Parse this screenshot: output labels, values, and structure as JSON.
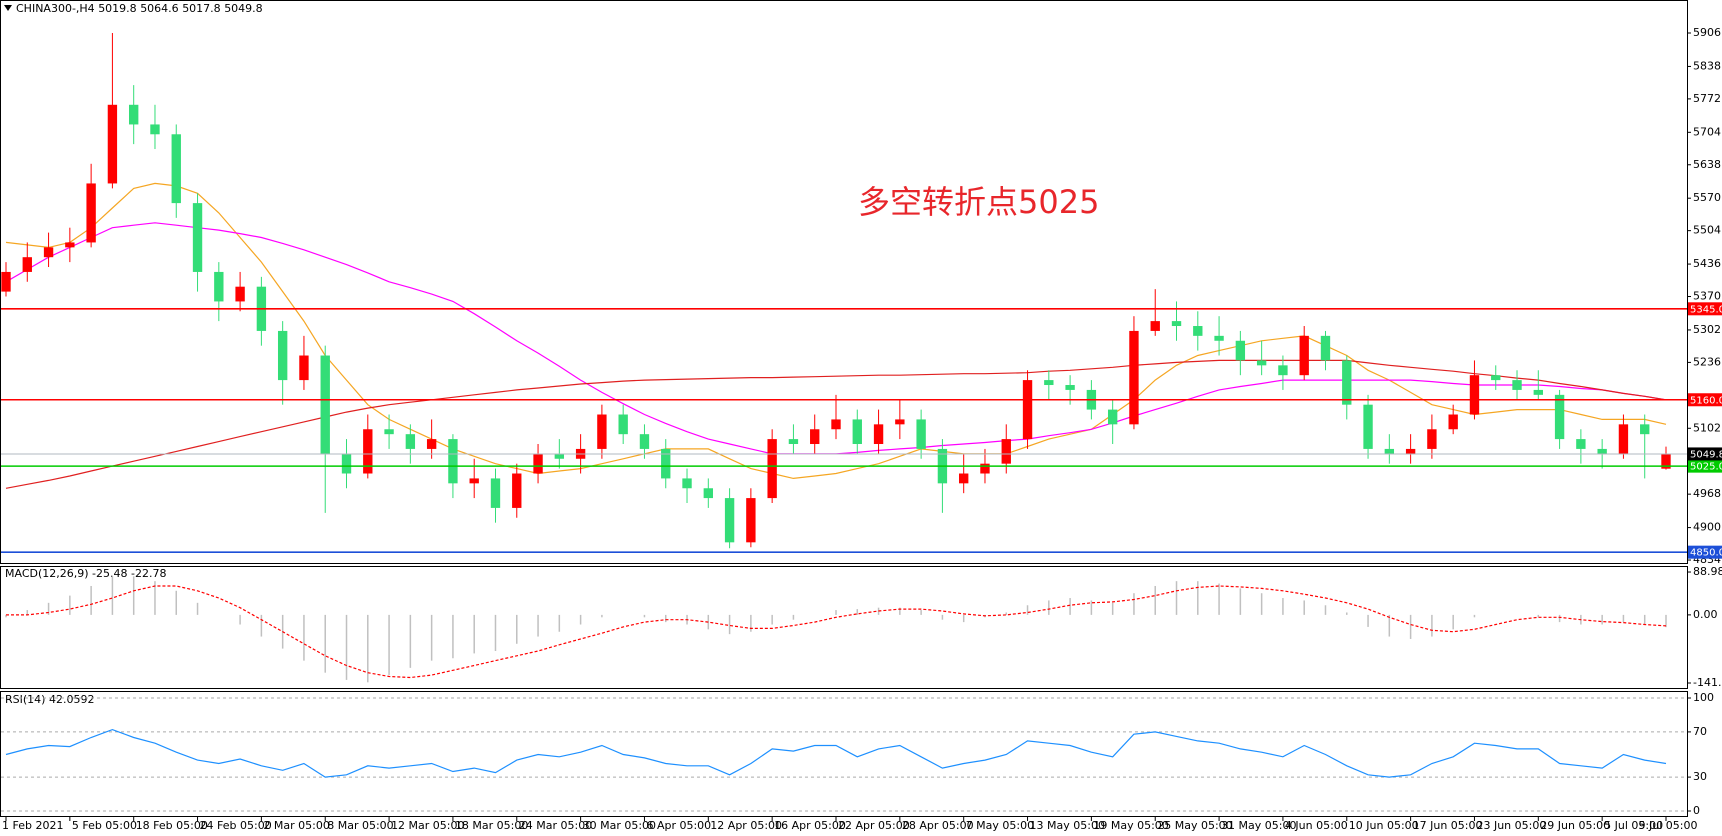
{
  "chart_data": [
    {
      "type": "candlestick",
      "title": "CHINA300-,H4",
      "annotation": "多空转折点5025",
      "annotation_color": "#e8262b",
      "up_color": "#ff0000",
      "down_color": "#33dd77",
      "last_price_color": "#b0b8c0",
      "grid": false,
      "ylim": [
        4830,
        5965
      ],
      "yticks": [
        {
          "value": 5906,
          "label": "5906.0"
        },
        {
          "value": 5838,
          "label": "5838.0"
        },
        {
          "value": 5772,
          "label": "5772.0"
        },
        {
          "value": 5704,
          "label": "5704.0"
        },
        {
          "value": 5638,
          "label": "5638.0"
        },
        {
          "value": 5570,
          "label": "5570.0"
        },
        {
          "value": 5504,
          "label": "5504.0"
        },
        {
          "value": 5436,
          "label": "5436.0"
        },
        {
          "value": 5370,
          "label": "5370.0"
        },
        {
          "value": 5302,
          "label": "5302.0"
        },
        {
          "value": 5236,
          "label": "5236.0"
        },
        {
          "value": 5102,
          "label": "5102.0"
        },
        {
          "value": 4968,
          "label": "4968.0"
        },
        {
          "value": 4900,
          "label": "4900.0"
        },
        {
          "value": 4834,
          "label": "4834.0"
        }
      ],
      "levels": [
        {
          "value": 5345,
          "label": "5345.0",
          "color": "#ff0000"
        },
        {
          "value": 5160,
          "label": "5160.0",
          "color": "#ff0000"
        },
        {
          "value": 5025,
          "label": "5025.0",
          "color": "#00cc00"
        },
        {
          "value": 4850,
          "label": "4850.0",
          "color": "#1c4fd8"
        }
      ],
      "categories": [
        "1 Feb 2021",
        null,
        null,
        "5 Feb 05:00",
        null,
        null,
        "18 Feb 05:00",
        null,
        null,
        "24 Feb 05:00",
        null,
        null,
        "2 Mar 05:00",
        null,
        null,
        "8 Mar 05:00",
        null,
        null,
        "12 Mar 05:00",
        null,
        null,
        "18 Mar 05:00",
        null,
        null,
        "24 Mar 05:00",
        null,
        null,
        "30 Mar 05:00",
        null,
        null,
        "6 Apr 05:00",
        null,
        null,
        "12 Apr 05:00",
        null,
        null,
        "16 Apr 05:00",
        null,
        null,
        "22 Apr 05:00",
        null,
        null,
        "28 Apr 05:00",
        null,
        null,
        "7 May 05:00",
        null,
        null,
        "13 May 05:00",
        null,
        null,
        "19 May 05:00",
        null,
        null,
        "25 May 05:00",
        null,
        null,
        "31 May 05:00",
        null,
        null,
        "4 Jun 05:00",
        null,
        null,
        "10 Jun 05:00",
        null,
        null,
        "17 Jun 05:00",
        null,
        null,
        "23 Jun 05:00",
        null,
        null,
        "29 Jun 05:00",
        null,
        null,
        "5 Jul 05:00",
        null,
        null,
        "9 Jul 05:00"
      ],
      "ohlc": [
        [
          5380,
          5440,
          5370,
          5420
        ],
        [
          5420,
          5480,
          5400,
          5450
        ],
        [
          5450,
          5500,
          5430,
          5470
        ],
        [
          5470,
          5510,
          5440,
          5480
        ],
        [
          5480,
          5640,
          5470,
          5600
        ],
        [
          5600,
          5906,
          5590,
          5760
        ],
        [
          5760,
          5800,
          5680,
          5720
        ],
        [
          5720,
          5760,
          5670,
          5700
        ],
        [
          5700,
          5720,
          5530,
          5560
        ],
        [
          5560,
          5580,
          5380,
          5420
        ],
        [
          5420,
          5440,
          5320,
          5360
        ],
        [
          5360,
          5420,
          5340,
          5390
        ],
        [
          5390,
          5410,
          5270,
          5300
        ],
        [
          5300,
          5320,
          5150,
          5200
        ],
        [
          5200,
          5290,
          5180,
          5250
        ],
        [
          5250,
          5270,
          4930,
          5050
        ],
        [
          5050,
          5080,
          4980,
          5010
        ],
        [
          5010,
          5130,
          5000,
          5100
        ],
        [
          5100,
          5130,
          5060,
          5090
        ],
        [
          5090,
          5110,
          5030,
          5060
        ],
        [
          5060,
          5120,
          5040,
          5080
        ],
        [
          5080,
          5090,
          4960,
          4990
        ],
        [
          4990,
          5040,
          4960,
          5000
        ],
        [
          5000,
          5020,
          4910,
          4940
        ],
        [
          4940,
          5030,
          4920,
          5010
        ],
        [
          5010,
          5070,
          4990,
          5050
        ],
        [
          5050,
          5080,
          5020,
          5040
        ],
        [
          5040,
          5090,
          5010,
          5060
        ],
        [
          5060,
          5150,
          5040,
          5130
        ],
        [
          5130,
          5150,
          5070,
          5090
        ],
        [
          5090,
          5110,
          5040,
          5060
        ],
        [
          5060,
          5080,
          4980,
          5000
        ],
        [
          5000,
          5020,
          4950,
          4980
        ],
        [
          4980,
          5000,
          4940,
          4960
        ],
        [
          4960,
          4980,
          4858,
          4870
        ],
        [
          4870,
          4980,
          4860,
          4960
        ],
        [
          4960,
          5100,
          4950,
          5080
        ],
        [
          5080,
          5110,
          5050,
          5070
        ],
        [
          5070,
          5130,
          5050,
          5100
        ],
        [
          5100,
          5170,
          5080,
          5120
        ],
        [
          5120,
          5140,
          5050,
          5070
        ],
        [
          5070,
          5140,
          5050,
          5110
        ],
        [
          5110,
          5160,
          5080,
          5120
        ],
        [
          5120,
          5140,
          5040,
          5060
        ],
        [
          5060,
          5080,
          4930,
          4990
        ],
        [
          4990,
          5050,
          4970,
          5010
        ],
        [
          5010,
          5060,
          4990,
          5030
        ],
        [
          5030,
          5110,
          5010,
          5080
        ],
        [
          5080,
          5220,
          5060,
          5200
        ],
        [
          5200,
          5220,
          5160,
          5190
        ],
        [
          5190,
          5210,
          5150,
          5180
        ],
        [
          5180,
          5200,
          5120,
          5140
        ],
        [
          5140,
          5160,
          5070,
          5110
        ],
        [
          5110,
          5330,
          5100,
          5300
        ],
        [
          5300,
          5385,
          5290,
          5320
        ],
        [
          5320,
          5360,
          5280,
          5310
        ],
        [
          5310,
          5340,
          5260,
          5290
        ],
        [
          5290,
          5330,
          5250,
          5280
        ],
        [
          5280,
          5300,
          5210,
          5240
        ],
        [
          5240,
          5280,
          5210,
          5230
        ],
        [
          5230,
          5250,
          5180,
          5210
        ],
        [
          5210,
          5310,
          5200,
          5290
        ],
        [
          5290,
          5300,
          5220,
          5240
        ],
        [
          5240,
          5250,
          5120,
          5150
        ],
        [
          5150,
          5170,
          5040,
          5060
        ],
        [
          5060,
          5090,
          5030,
          5050
        ],
        [
          5050,
          5090,
          5030,
          5060
        ],
        [
          5060,
          5130,
          5040,
          5100
        ],
        [
          5100,
          5150,
          5090,
          5130
        ],
        [
          5130,
          5240,
          5120,
          5210
        ],
        [
          5210,
          5230,
          5180,
          5200
        ],
        [
          5200,
          5220,
          5160,
          5180
        ],
        [
          5180,
          5220,
          5160,
          5170
        ],
        [
          5170,
          5180,
          5060,
          5080
        ],
        [
          5080,
          5100,
          5030,
          5060
        ],
        [
          5060,
          5080,
          5020,
          5050
        ],
        [
          5050,
          5130,
          5040,
          5110
        ],
        [
          5110,
          5130,
          5000,
          5090
        ],
        [
          5019.8,
          5064.6,
          5017.8,
          5049.8
        ]
      ],
      "series": [
        {
          "color": "#f5a623",
          "values": [
            5480,
            5475,
            5470,
            5480,
            5510,
            5550,
            5590,
            5600,
            5595,
            5580,
            5540,
            5490,
            5440,
            5380,
            5320,
            5250,
            5200,
            5150,
            5120,
            5100,
            5080,
            5060,
            5045,
            5030,
            5020,
            5010,
            5015,
            5020,
            5030,
            5040,
            5050,
            5060,
            5060,
            5060,
            5040,
            5020,
            5010,
            5000,
            5005,
            5010,
            5020,
            5030,
            5045,
            5060,
            5055,
            5050,
            5050,
            5050,
            5065,
            5080,
            5090,
            5100,
            5130,
            5160,
            5200,
            5230,
            5250,
            5260,
            5270,
            5280,
            5285,
            5290,
            5270,
            5250,
            5220,
            5200,
            5175,
            5150,
            5140,
            5130,
            5135,
            5140,
            5140,
            5140,
            5130,
            5120,
            5120,
            5120,
            5110
          ]
        },
        {
          "color": "#ff00ff",
          "values": [
            5400,
            5425,
            5450,
            5470,
            5490,
            5510,
            5515,
            5520,
            5515,
            5510,
            5505,
            5498,
            5490,
            5478,
            5465,
            5450,
            5435,
            5418,
            5400,
            5388,
            5375,
            5360,
            5335,
            5308,
            5280,
            5255,
            5228,
            5200,
            5175,
            5152,
            5130,
            5112,
            5095,
            5080,
            5070,
            5060,
            5050,
            5050,
            5050,
            5050,
            5053,
            5057,
            5060,
            5063,
            5067,
            5070,
            5073,
            5077,
            5080,
            5087,
            5093,
            5100,
            5113,
            5127,
            5140,
            5153,
            5167,
            5180,
            5187,
            5193,
            5200,
            5200,
            5200,
            5200,
            5200,
            5200,
            5200,
            5197,
            5193,
            5190,
            5190,
            5190,
            5190,
            5187,
            5183,
            5180,
            5173,
            5167,
            5160
          ]
        },
        {
          "color": "#e02020",
          "values": [
            4980,
            4988,
            4996,
            5005,
            5015,
            5025,
            5035,
            5045,
            5055,
            5065,
            5075,
            5085,
            5095,
            5105,
            5115,
            5125,
            5135,
            5143,
            5150,
            5155,
            5160,
            5165,
            5170,
            5175,
            5180,
            5184,
            5188,
            5192,
            5195,
            5198,
            5200,
            5201,
            5202,
            5203,
            5204,
            5205,
            5205,
            5206,
            5207,
            5208,
            5209,
            5210,
            5210,
            5211,
            5212,
            5213,
            5213,
            5214,
            5215,
            5218,
            5220,
            5223,
            5226,
            5230,
            5233,
            5236,
            5238,
            5240,
            5240,
            5240,
            5240,
            5240,
            5240,
            5240,
            5235,
            5230,
            5226,
            5222,
            5218,
            5213,
            5209,
            5204,
            5200,
            5193,
            5187,
            5180,
            5173,
            5167,
            5160
          ]
        }
      ]
    },
    {
      "type": "macd",
      "title": "MACD(12,26,9)",
      "ylim": [
        -149.7,
        99.4
      ],
      "yticks": [
        88.98,
        {
          "value": 0,
          "label": "0.00"
        },
        -141.39
      ],
      "histogram": {
        "color": "#c0c0c0",
        "values": [
          -5,
          10,
          25,
          40,
          60,
          80,
          80,
          70,
          50,
          25,
          0,
          -20,
          -45,
          -70,
          -95,
          -120,
          -135,
          -140,
          -125,
          -110,
          -95,
          -90,
          -80,
          -75,
          -60,
          -45,
          -35,
          -20,
          -5,
          0,
          -5,
          -15,
          -20,
          -30,
          -40,
          -35,
          -20,
          -10,
          0,
          10,
          12,
          15,
          15,
          10,
          -10,
          -15,
          -5,
          5,
          20,
          30,
          35,
          30,
          25,
          45,
          60,
          70,
          70,
          65,
          55,
          45,
          35,
          30,
          20,
          5,
          -25,
          -45,
          -50,
          -45,
          -30,
          -5,
          0,
          0,
          -5,
          -15,
          -20,
          -20,
          -15,
          -20,
          -25.48
        ]
      },
      "signal": {
        "color": "#ff0000",
        "values": [
          0,
          0,
          5,
          12,
          22,
          35,
          50,
          60,
          60,
          50,
          35,
          15,
          -10,
          -35,
          -60,
          -85,
          -105,
          -120,
          -128,
          -130,
          -125,
          -115,
          -105,
          -95,
          -85,
          -75,
          -62,
          -50,
          -38,
          -25,
          -15,
          -10,
          -10,
          -15,
          -22,
          -28,
          -28,
          -22,
          -15,
          -5,
          2,
          8,
          12,
          12,
          8,
          2,
          -2,
          0,
          5,
          12,
          20,
          25,
          27,
          32,
          40,
          50,
          57,
          60,
          58,
          55,
          50,
          43,
          35,
          25,
          12,
          -5,
          -20,
          -32,
          -35,
          -30,
          -20,
          -10,
          -5,
          -5,
          -10,
          -14,
          -16,
          -20,
          -22.78
        ]
      }
    },
    {
      "type": "rsi",
      "title": "RSI(14)",
      "color": "#1e90ff",
      "ylim": [
        0,
        100
      ],
      "yticks": [
        100,
        70,
        30,
        0
      ],
      "values": [
        50,
        55,
        58,
        57,
        65,
        72,
        65,
        60,
        52,
        45,
        42,
        46,
        40,
        36,
        42,
        30,
        32,
        40,
        38,
        40,
        42,
        35,
        38,
        34,
        45,
        50,
        48,
        52,
        58,
        50,
        47,
        42,
        40,
        40,
        32,
        42,
        55,
        53,
        58,
        58,
        48,
        55,
        58,
        48,
        38,
        42,
        45,
        50,
        62,
        60,
        58,
        52,
        48,
        68,
        70,
        66,
        62,
        60,
        55,
        52,
        48,
        58,
        50,
        40,
        32,
        30,
        32,
        42,
        48,
        60,
        58,
        55,
        55,
        42,
        40,
        38,
        50,
        45,
        42.0592
      ]
    }
  ]
}
